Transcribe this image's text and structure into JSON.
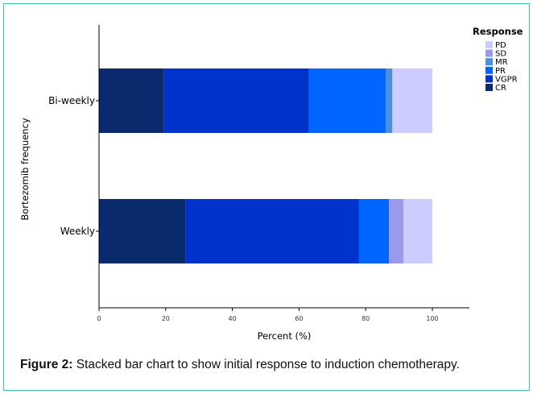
{
  "caption": {
    "label": "Figure 2:",
    "text": "Stacked bar chart to show initial response to induction chemotherapy."
  },
  "chart_data": {
    "type": "bar",
    "orientation": "horizontal",
    "stacked": true,
    "categories": [
      "Bi-weekly",
      "Weekly"
    ],
    "xlabel": "Percent (%)",
    "ylabel": "Bortezomib frequency",
    "xlim": [
      0,
      100
    ],
    "xticks": [
      0,
      20,
      40,
      60,
      80,
      100
    ],
    "grid": false,
    "legend": {
      "title": "Response",
      "position": "top-right",
      "order": [
        "PD",
        "SD",
        "MR",
        "PR",
        "VGPR",
        "CR"
      ]
    },
    "series": [
      {
        "name": "CR",
        "color": "#0a2a6e",
        "values": [
          19.5,
          26.0
        ]
      },
      {
        "name": "VGPR",
        "color": "#0033cc",
        "values": [
          43.5,
          52.0
        ]
      },
      {
        "name": "PR",
        "color": "#0066ff",
        "values": [
          23.0,
          9.0
        ]
      },
      {
        "name": "MR",
        "color": "#4a90e2",
        "values": [
          2.0,
          0.0
        ]
      },
      {
        "name": "SD",
        "color": "#9999ee",
        "values": [
          0.0,
          4.3
        ]
      },
      {
        "name": "PD",
        "color": "#ccccff",
        "values": [
          12.0,
          8.7
        ]
      }
    ]
  }
}
